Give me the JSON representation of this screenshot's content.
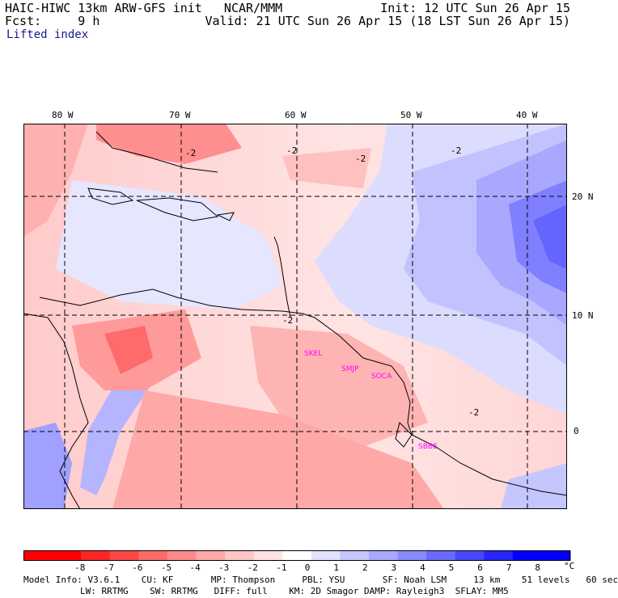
{
  "header": {
    "title_left": "HAIC-HIWC 13km ARW-GFS init   NCAR/MMM",
    "fcst_label": "Fcst:     9 h",
    "init_text": "Init: 12 UTC Sun 26 Apr 15",
    "valid_text": "Valid: 21 UTC Sun 26 Apr 15 (18 LST Sun 26 Apr 15)",
    "field_name": "Lifted index"
  },
  "axes": {
    "lon_labels": [
      "80 W",
      "70 W",
      "60 W",
      "50 W",
      "40 W"
    ],
    "lat_labels": [
      "20 N",
      "10 N",
      "0"
    ]
  },
  "map": {
    "contour_label": "-2",
    "stations": [
      "SKEL",
      "SMJP",
      "SOCA",
      "SBBE"
    ]
  },
  "colorbar": {
    "tick_labels": [
      "-8",
      "-7",
      "-6",
      "-5",
      "-4",
      "-3",
      "-2",
      "-1",
      "0",
      "1",
      "2",
      "3",
      "4",
      "5",
      "6",
      "7",
      "8"
    ],
    "unit": "°C",
    "colors": [
      "#ff0000",
      "#ff2626",
      "#ff4747",
      "#ff6a6a",
      "#ff8a8a",
      "#ffa8a8",
      "#ffc6c6",
      "#ffe2e2",
      "#ffffff",
      "#e2e2ff",
      "#c6c6ff",
      "#a8a8ff",
      "#8a8aff",
      "#6a6aff",
      "#4747ff",
      "#2626ff",
      "#0000ff"
    ]
  },
  "model_info": {
    "line1": "Model Info: V3.6.1    CU: KF       MP: Thompson     PBL: YSU       SF: Noah LSM     13 km    51 levels   60 sec",
    "line2": "LW: RRTMG    SW: RRTMG   DIFF: full    KM: 2D Smagor DAMP: Rayleigh3  SFLAY: MM5"
  }
}
